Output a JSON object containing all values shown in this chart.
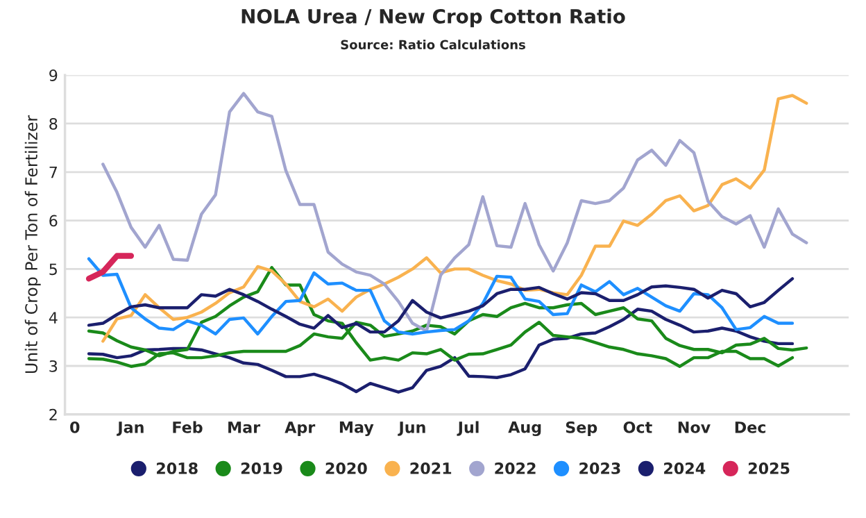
{
  "chart_data": {
    "type": "line",
    "title": "NOLA Urea / New Crop Cotton Ratio",
    "subtitle": "Source: Ratio Calculations",
    "ylabel": "Unit of Crop Per Ton of Fertilizer",
    "categories": [
      "0",
      null,
      null,
      null,
      "Jan",
      null,
      null,
      null,
      "Feb",
      null,
      null,
      null,
      "Mar",
      null,
      null,
      null,
      "Apr",
      null,
      null,
      null,
      "May",
      null,
      null,
      null,
      "Jun",
      null,
      null,
      null,
      "Jul",
      null,
      null,
      null,
      "Aug",
      null,
      null,
      null,
      "Sep",
      null,
      null,
      null,
      "Oct",
      null,
      null,
      null,
      "Nov",
      null,
      null,
      null,
      "Dec",
      null,
      null,
      null,
      null
    ],
    "ylim": [
      2,
      9
    ],
    "yticks": [
      2,
      3,
      4,
      5,
      6,
      7,
      8,
      9
    ],
    "grid": "y",
    "legend": "bottom",
    "marker": "none",
    "line_style": "solid",
    "series": [
      {
        "name": "2018",
        "color": "#1b1f6e",
        "values": [
          null,
          3.25,
          3.24,
          3.17,
          3.21,
          3.33,
          3.34,
          3.36,
          3.36,
          3.33,
          3.25,
          3.17,
          3.06,
          3.03,
          2.91,
          2.78,
          2.78,
          2.83,
          2.74,
          2.63,
          2.47,
          2.64,
          2.55,
          2.46,
          2.55,
          2.91,
          2.99,
          3.17,
          2.79,
          2.78,
          2.76,
          2.82,
          2.94,
          3.43,
          3.55,
          3.57,
          3.66,
          3.68,
          3.81,
          3.96,
          4.17,
          4.13,
          3.96,
          3.84,
          3.7,
          3.72,
          3.78,
          3.72,
          3.6,
          3.51,
          3.46,
          3.46,
          null
        ]
      },
      {
        "name": "2019",
        "color": "#1a8a1a",
        "values": [
          null,
          3.15,
          3.14,
          3.08,
          2.99,
          3.04,
          3.25,
          3.27,
          3.17,
          3.17,
          3.21,
          3.27,
          3.3,
          3.3,
          3.3,
          3.3,
          3.42,
          3.66,
          3.6,
          3.57,
          3.9,
          3.84,
          3.61,
          3.66,
          3.72,
          3.84,
          3.81,
          3.66,
          3.93,
          4.06,
          4.02,
          4.2,
          4.29,
          4.2,
          4.2,
          4.26,
          4.29,
          4.06,
          4.13,
          4.2,
          3.97,
          3.93,
          3.57,
          3.42,
          3.34,
          3.34,
          3.27,
          3.43,
          3.45,
          3.57,
          3.36,
          3.33,
          3.37
        ]
      },
      {
        "name": "2020",
        "color": "#1a8a1a",
        "values": [
          null,
          3.72,
          3.68,
          3.52,
          3.39,
          3.33,
          3.21,
          3.3,
          3.34,
          3.9,
          4.02,
          4.24,
          4.42,
          4.53,
          5.03,
          4.67,
          4.67,
          4.06,
          3.93,
          3.88,
          3.48,
          3.12,
          3.17,
          3.12,
          3.27,
          3.25,
          3.34,
          3.12,
          3.24,
          3.25,
          3.34,
          3.43,
          3.7,
          3.9,
          3.63,
          3.6,
          3.57,
          3.48,
          3.39,
          3.34,
          3.25,
          3.21,
          3.15,
          2.99,
          3.17,
          3.17,
          3.3,
          3.3,
          3.15,
          3.15,
          3.0,
          3.17,
          null
        ]
      },
      {
        "name": "2021",
        "color": "#f9b24f",
        "values": [
          null,
          null,
          3.51,
          3.97,
          4.04,
          4.47,
          4.2,
          3.96,
          4.0,
          4.11,
          4.29,
          4.51,
          4.63,
          5.05,
          4.96,
          4.69,
          4.33,
          4.22,
          4.38,
          4.13,
          4.42,
          4.58,
          4.69,
          4.83,
          5.0,
          5.23,
          4.92,
          5.0,
          5.0,
          4.87,
          4.76,
          4.69,
          4.56,
          4.58,
          4.51,
          4.47,
          4.87,
          5.47,
          5.47,
          5.99,
          5.9,
          6.13,
          6.41,
          6.51,
          6.2,
          6.31,
          6.74,
          6.86,
          6.67,
          7.04,
          8.51,
          8.58,
          8.42
        ]
      },
      {
        "name": "2022",
        "color": "#a2a5cf",
        "values": [
          null,
          null,
          7.16,
          6.58,
          5.86,
          5.45,
          5.9,
          5.2,
          5.18,
          6.13,
          6.53,
          8.24,
          8.62,
          8.24,
          8.15,
          7.03,
          6.33,
          6.33,
          5.35,
          5.1,
          4.94,
          4.87,
          4.69,
          4.33,
          3.88,
          3.72,
          4.87,
          5.23,
          5.5,
          6.49,
          5.48,
          5.45,
          6.35,
          5.5,
          4.96,
          5.54,
          6.41,
          6.35,
          6.41,
          6.67,
          7.25,
          7.45,
          7.14,
          7.65,
          7.4,
          6.4,
          6.08,
          5.93,
          6.1,
          5.45,
          6.24,
          5.72,
          5.54
        ]
      },
      {
        "name": "2023",
        "color": "#1e8fff",
        "values": [
          null,
          5.21,
          4.87,
          4.89,
          4.2,
          3.97,
          3.78,
          3.75,
          3.93,
          3.84,
          3.66,
          3.96,
          3.99,
          3.66,
          4.02,
          4.33,
          4.35,
          4.92,
          4.69,
          4.71,
          4.56,
          4.56,
          3.93,
          3.7,
          3.66,
          3.7,
          3.73,
          3.75,
          3.93,
          4.29,
          4.85,
          4.83,
          4.38,
          4.33,
          4.06,
          4.08,
          4.67,
          4.53,
          4.74,
          4.47,
          4.6,
          4.42,
          4.24,
          4.13,
          4.49,
          4.47,
          4.2,
          3.75,
          3.79,
          4.02,
          3.88,
          3.88,
          null
        ]
      },
      {
        "name": "2024",
        "color": "#1b1f6e",
        "values": [
          null,
          3.84,
          3.88,
          4.06,
          4.22,
          4.26,
          4.2,
          4.2,
          4.2,
          4.47,
          4.44,
          4.58,
          4.47,
          4.33,
          4.17,
          4.02,
          3.86,
          3.78,
          4.04,
          3.79,
          3.88,
          3.7,
          3.7,
          3.93,
          4.35,
          4.11,
          3.99,
          4.06,
          4.13,
          4.24,
          4.49,
          4.58,
          4.58,
          4.62,
          4.49,
          4.38,
          4.51,
          4.49,
          4.35,
          4.35,
          4.47,
          4.63,
          4.65,
          4.62,
          4.58,
          4.4,
          4.56,
          4.49,
          4.22,
          4.31,
          4.56,
          4.8,
          null
        ]
      },
      {
        "name": "2025",
        "color": "#d6265a",
        "values": [
          null,
          4.8,
          4.94,
          5.27,
          5.27,
          null,
          null,
          null,
          null,
          null,
          null,
          null,
          null,
          null,
          null,
          null,
          null,
          null,
          null,
          null,
          null,
          null,
          null,
          null,
          null,
          null,
          null,
          null,
          null,
          null,
          null,
          null,
          null,
          null,
          null,
          null,
          null,
          null,
          null,
          null,
          null,
          null,
          null,
          null,
          null,
          null,
          null,
          null,
          null,
          null,
          null,
          null,
          null
        ]
      }
    ]
  }
}
